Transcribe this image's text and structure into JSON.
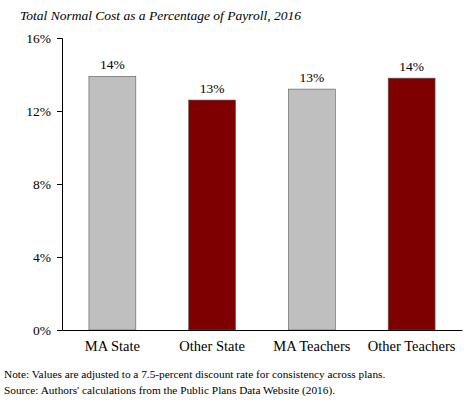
{
  "chart_data": {
    "type": "bar",
    "title": "Total Normal Cost as a Percentage of Payroll, 2016",
    "categories": [
      "MA State",
      "Other State",
      "MA Teachers",
      "Other Teachers"
    ],
    "values": [
      13.9,
      12.6,
      13.2,
      13.8
    ],
    "value_labels": [
      "14%",
      "13%",
      "13%",
      "14%"
    ],
    "colors": [
      "#bfbfbf",
      "#7f0000",
      "#bfbfbf",
      "#7f0000"
    ],
    "ylim": [
      0,
      16
    ],
    "yticks": [
      {
        "value": 0,
        "label": "0%"
      },
      {
        "value": 4,
        "label": "4%"
      },
      {
        "value": 8,
        "label": "8%"
      },
      {
        "value": 12,
        "label": "12%"
      },
      {
        "value": 16,
        "label": "16%"
      }
    ],
    "grid": false,
    "data_labels": true,
    "annotations": [
      "Note: Values are adjusted to a 7.5-percent discount rate for consistency across plans.",
      "Source: Authors' calculations from the Public Plans Data Website (2016)."
    ]
  }
}
